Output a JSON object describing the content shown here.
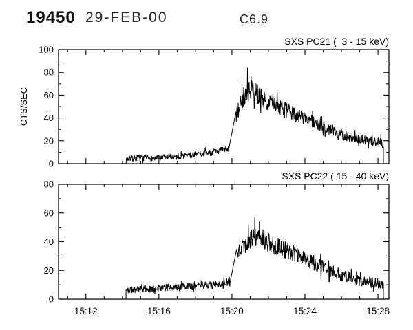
{
  "header": {
    "event_id": "19450",
    "date": "29-FEB-00",
    "flare_class": "C6.9"
  },
  "chart_data": [
    {
      "type": "line",
      "title": "SXS PC21 (  3 - 15 keV)",
      "ylabel": "CTS/SEC",
      "ylim": [
        0,
        100
      ],
      "yticks": [
        0,
        20,
        40,
        60,
        80,
        100
      ],
      "y_minor_step": 10,
      "xlim": [
        10.5,
        28.6
      ],
      "xticks": [
        12,
        16,
        20,
        24,
        28
      ],
      "xtick_labels": [],
      "x_minor_step": 1,
      "line_color": "#000000",
      "seed": 7,
      "start_at_zero": true,
      "envelope": [
        [
          14.2,
          4
        ],
        [
          15,
          5
        ],
        [
          16,
          4.5
        ],
        [
          16.5,
          6
        ],
        [
          17,
          6
        ],
        [
          17.5,
          7
        ],
        [
          18,
          8
        ],
        [
          18.5,
          9
        ],
        [
          19,
          10
        ],
        [
          19.5,
          12
        ],
        [
          19.85,
          13
        ],
        [
          20.2,
          40
        ],
        [
          20.45,
          52
        ],
        [
          20.7,
          60
        ],
        [
          21.0,
          64
        ],
        [
          21.3,
          63
        ],
        [
          21.6,
          58
        ],
        [
          22,
          54
        ],
        [
          22.5,
          50
        ],
        [
          23,
          46
        ],
        [
          23.5,
          43
        ],
        [
          24,
          40
        ],
        [
          24.5,
          36
        ],
        [
          25,
          32
        ],
        [
          25.5,
          29
        ],
        [
          26,
          26
        ],
        [
          26.5,
          23
        ],
        [
          27,
          21
        ],
        [
          27.5,
          20
        ],
        [
          28,
          19
        ],
        [
          28.3,
          18
        ]
      ],
      "noise": [
        [
          14.2,
          2.5
        ],
        [
          19,
          3
        ],
        [
          19.85,
          3
        ],
        [
          20.2,
          7
        ],
        [
          20.7,
          9
        ],
        [
          21.2,
          9
        ],
        [
          22,
          8
        ],
        [
          23,
          7
        ],
        [
          24,
          6.5
        ],
        [
          25,
          5.5
        ],
        [
          26,
          5
        ],
        [
          27,
          4.5
        ],
        [
          28.3,
          4
        ]
      ],
      "spikes": [
        [
          20.55,
          75
        ],
        [
          20.85,
          84
        ],
        [
          21.05,
          77
        ]
      ],
      "gaps": [
        [
          19.85,
          20.2
        ]
      ]
    },
    {
      "type": "line",
      "title": "SXS PC22 ( 15 - 40 keV)",
      "ylabel": "",
      "ylim": [
        0,
        80
      ],
      "yticks": [
        0,
        20,
        40,
        60,
        80
      ],
      "y_minor_step": 10,
      "xlim": [
        10.5,
        28.6
      ],
      "xticks": [
        12,
        16,
        20,
        24,
        28
      ],
      "xtick_labels": [
        "15:12",
        "15:16",
        "15:20",
        "15:24",
        "15:28"
      ],
      "x_minor_step": 1,
      "line_color": "#000000",
      "seed": 11,
      "start_at_zero": true,
      "envelope": [
        [
          14.2,
          6
        ],
        [
          15,
          7
        ],
        [
          15.5,
          7
        ],
        [
          16,
          8
        ],
        [
          16.5,
          8
        ],
        [
          17,
          8
        ],
        [
          17.5,
          9
        ],
        [
          18,
          9
        ],
        [
          18.5,
          10
        ],
        [
          19,
          10
        ],
        [
          19.5,
          11
        ],
        [
          19.9,
          12
        ],
        [
          20.25,
          32
        ],
        [
          20.6,
          37
        ],
        [
          21.0,
          41
        ],
        [
          21.4,
          43
        ],
        [
          21.8,
          41
        ],
        [
          22.2,
          38
        ],
        [
          22.6,
          36
        ],
        [
          23,
          34
        ],
        [
          23.5,
          31
        ],
        [
          24,
          28
        ],
        [
          24.5,
          25
        ],
        [
          25,
          22
        ],
        [
          25.5,
          19
        ],
        [
          26,
          17
        ],
        [
          26.5,
          15
        ],
        [
          27,
          13
        ],
        [
          27.5,
          12
        ],
        [
          28.3,
          10
        ]
      ],
      "noise": [
        [
          14.2,
          2.5
        ],
        [
          19.5,
          2.5
        ],
        [
          20.25,
          5
        ],
        [
          21,
          7
        ],
        [
          21.8,
          7
        ],
        [
          23,
          6
        ],
        [
          24,
          5.5
        ],
        [
          25,
          5
        ],
        [
          26,
          4.5
        ],
        [
          27,
          4
        ],
        [
          28.3,
          3.5
        ]
      ],
      "spikes": [
        [
          20.9,
          52
        ],
        [
          21.25,
          57
        ],
        [
          21.5,
          54
        ]
      ],
      "gaps": [
        [
          19.9,
          20.25
        ]
      ]
    }
  ]
}
